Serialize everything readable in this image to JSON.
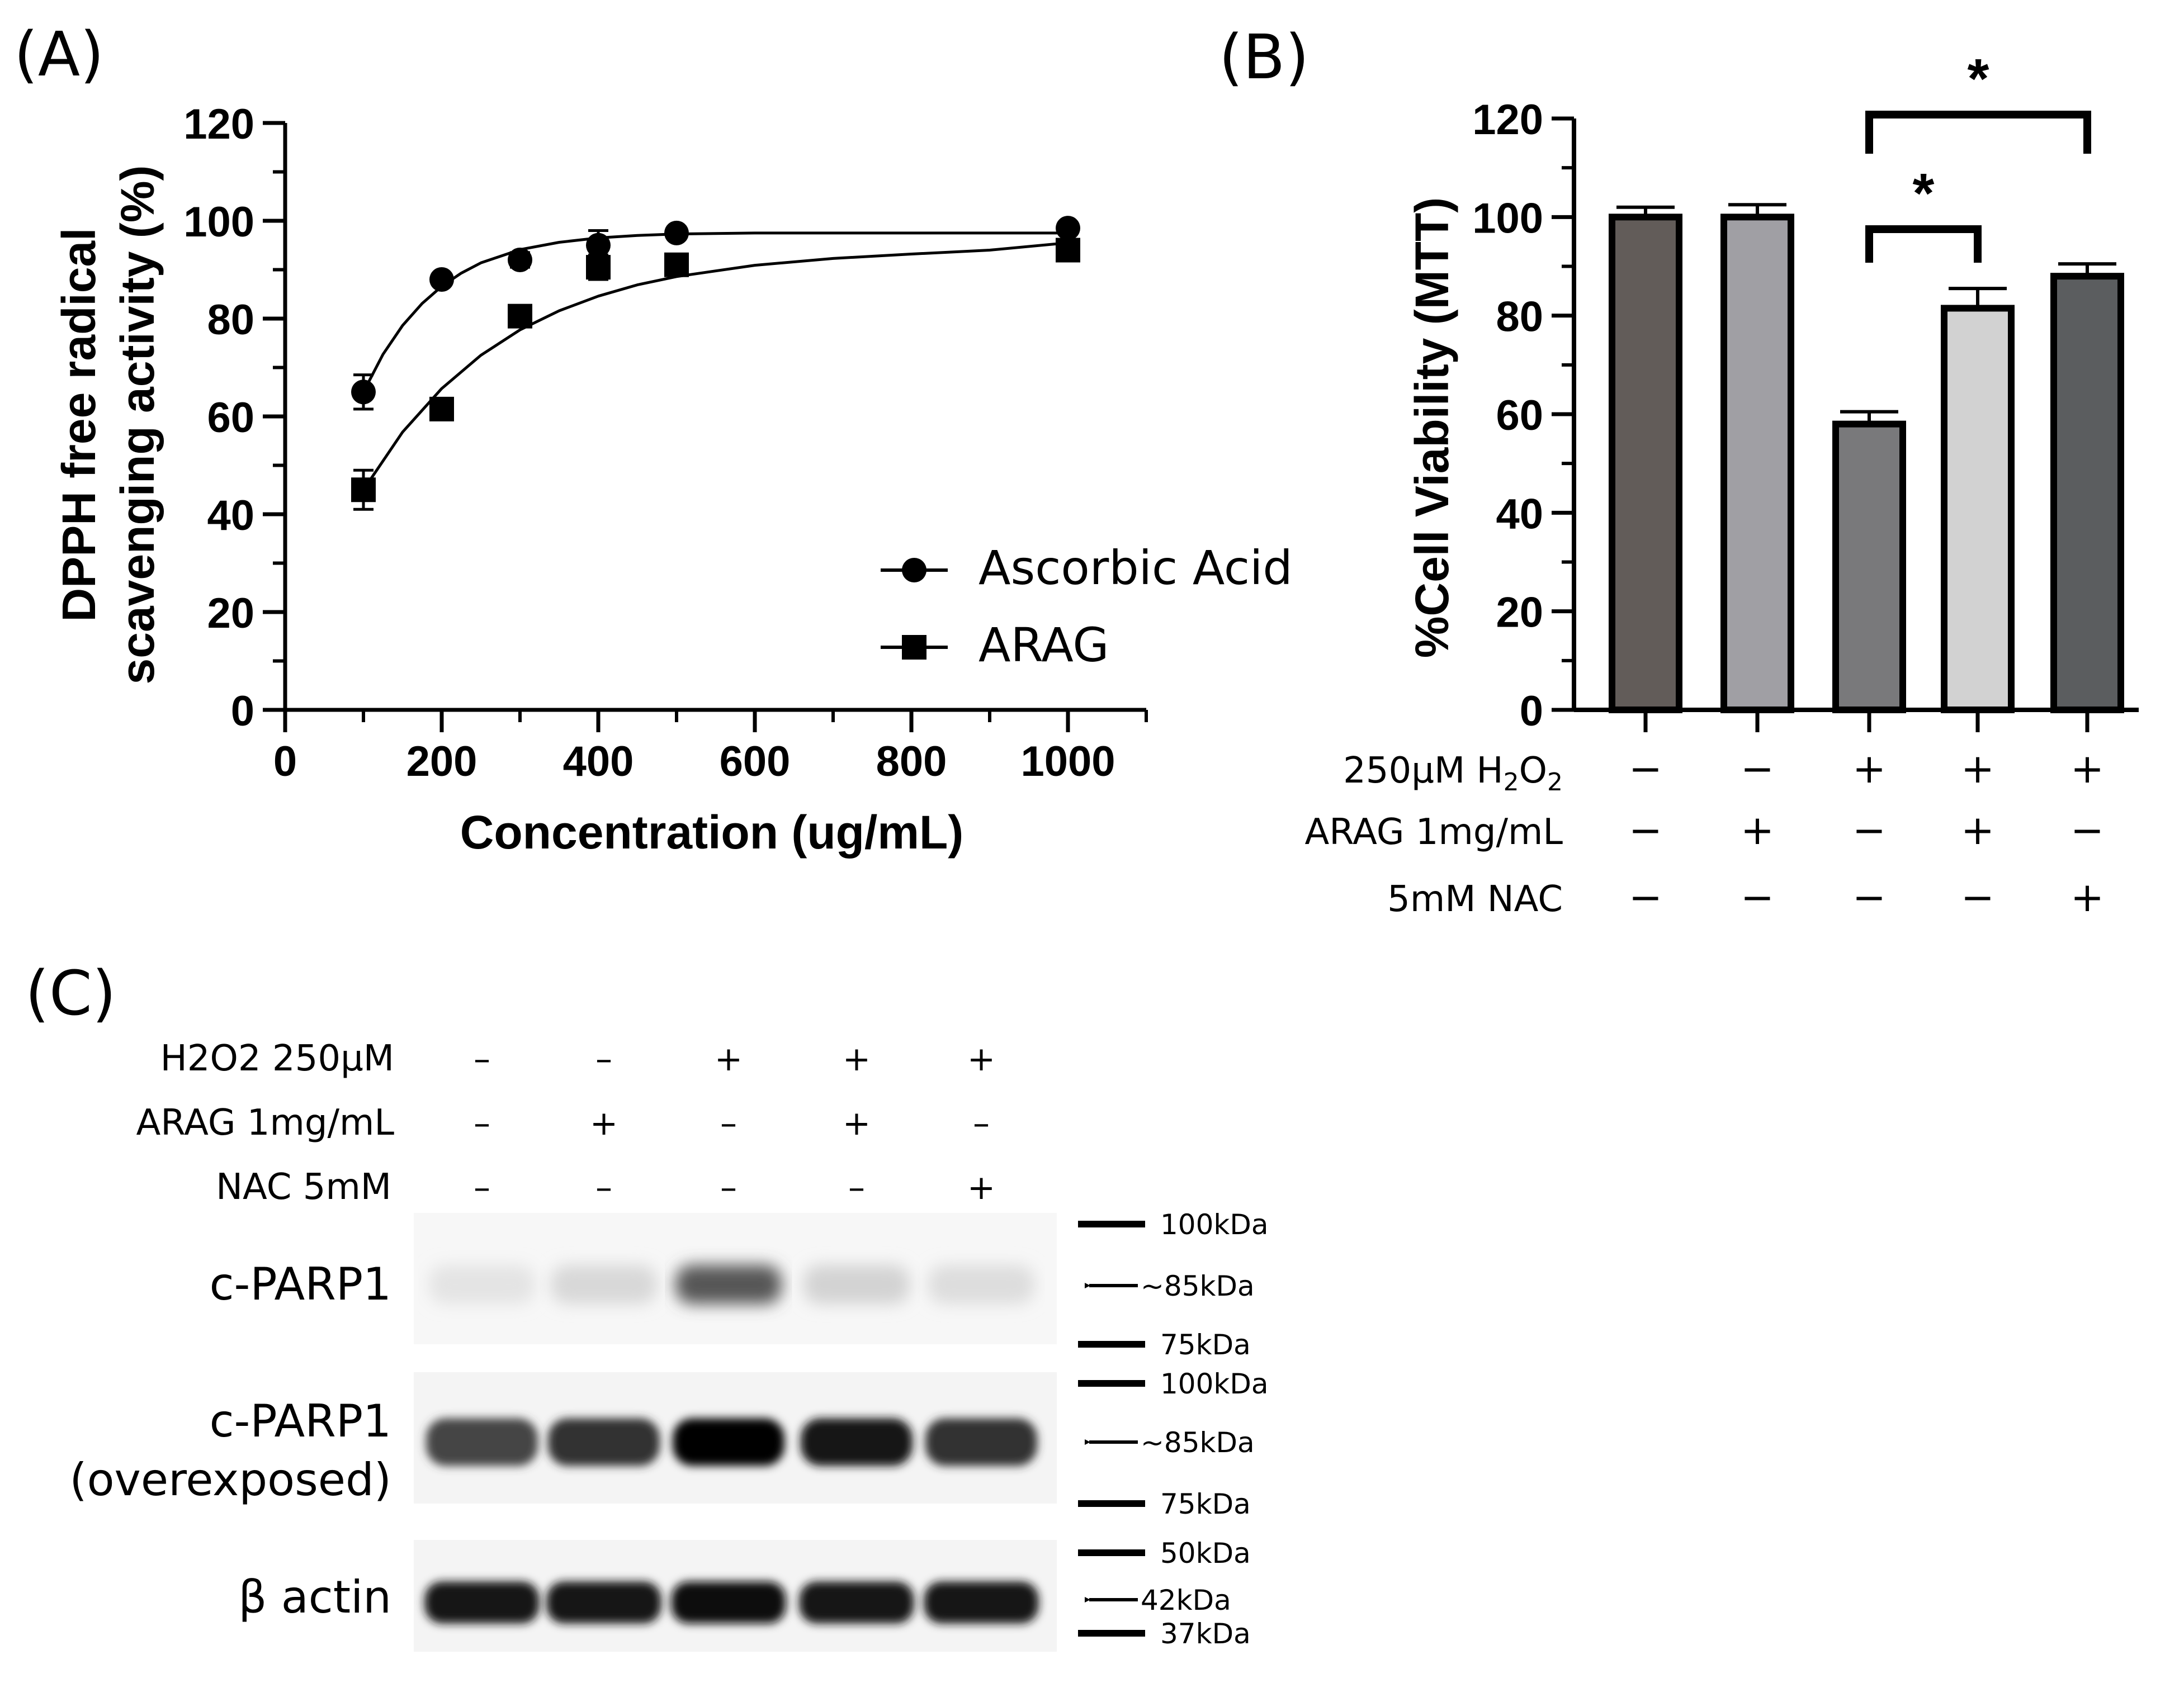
{
  "chart_data": [
    {
      "panel": "(A)",
      "type": "scatter",
      "xlabel": "Concentration (ug/mL)",
      "ylabel_line1": "DPPH free radical",
      "ylabel_line2": "scavenging activity (%)",
      "xlim": [
        0,
        1100
      ],
      "ylim": [
        0,
        120
      ],
      "xticks": [
        0,
        200,
        400,
        600,
        800,
        1000
      ],
      "yticks": [
        0,
        20,
        40,
        60,
        80,
        100,
        120
      ],
      "grid": false,
      "legend_position": "bottom-right",
      "series": [
        {
          "name": "Ascorbic Acid",
          "marker": "circle",
          "x": [
            100,
            200,
            300,
            400,
            500,
            1000
          ],
          "y": [
            65,
            88,
            92,
            95,
            97.5,
            98.5
          ],
          "error": [
            3.5,
            1.2,
            1.5,
            3,
            1.2,
            1.2
          ]
        },
        {
          "name": "ARAG",
          "marker": "square",
          "x": [
            100,
            200,
            300,
            400,
            500,
            1000
          ],
          "y": [
            45,
            61.5,
            80.5,
            90.5,
            91,
            94
          ],
          "error": [
            4,
            2,
            1.5,
            2.5,
            1.2,
            1.5
          ]
        }
      ],
      "fit_curves": [
        {
          "series": "Ascorbic Acid",
          "x": [
            100,
            125,
            150,
            175,
            200,
            225,
            250,
            300,
            350,
            400,
            450,
            500,
            600,
            700,
            800,
            900,
            1000
          ],
          "y": [
            65,
            72.7,
            78.6,
            83.1,
            86.6,
            89.3,
            91.4,
            94.1,
            95.6,
            96.5,
            97,
            97.3,
            97.5,
            97.5,
            97.5,
            97.5,
            97.5
          ]
        },
        {
          "series": "ARAG",
          "x": [
            100,
            150,
            200,
            250,
            300,
            350,
            400,
            450,
            500,
            600,
            700,
            800,
            900,
            1000
          ],
          "y": [
            45,
            56.8,
            65.7,
            72.5,
            77.7,
            81.6,
            84.6,
            86.9,
            88.6,
            90.9,
            92.3,
            93.2,
            94,
            95.5
          ]
        }
      ]
    },
    {
      "panel": "(B)",
      "type": "bar",
      "ylabel": "%Cell Viability (MTT)",
      "ylim": [
        0,
        120
      ],
      "yticks": [
        0,
        20,
        40,
        60,
        80,
        100,
        120
      ],
      "grid": false,
      "bars": [
        {
          "value": 100,
          "error": 2,
          "color": "#625c59"
        },
        {
          "value": 100,
          "error": 2.5,
          "color": "#a09fa4"
        },
        {
          "value": 58,
          "error": 2.5,
          "color": "#79797b"
        },
        {
          "value": 81.5,
          "error": 4,
          "color": "#d2d2d2"
        },
        {
          "value": 88,
          "error": 2.5,
          "color": "#5b5d5f"
        }
      ],
      "treatment_rows": [
        {
          "label": "250µM H",
          "sub1": "2",
          "mid": "O",
          "sub2": "2",
          "signs": [
            "−",
            "−",
            "+",
            "+",
            "+"
          ]
        },
        {
          "label": "ARAG 1mg/mL",
          "signs": [
            "−",
            "+",
            "−",
            "+",
            "−"
          ]
        },
        {
          "label": "5mM NAC",
          "signs": [
            "−",
            "−",
            "−",
            "−",
            "+"
          ]
        }
      ],
      "significance": [
        {
          "from": 3,
          "to": 4,
          "label": "*"
        },
        {
          "from": 3,
          "to": 5,
          "label": "*"
        }
      ]
    }
  ],
  "panel_c": {
    "panel": "(C)",
    "treatment_rows": [
      {
        "label": "H2O2  250µM",
        "signs": [
          "–",
          "–",
          "+",
          "+",
          "+"
        ]
      },
      {
        "label": "ARAG 1mg/mL",
        "signs": [
          "–",
          "+",
          "–",
          "+",
          "–"
        ]
      },
      {
        "label": "NAC 5mM",
        "signs": [
          "–",
          "–",
          "–",
          "–",
          "+"
        ]
      }
    ],
    "blots": [
      {
        "label": "c-PARP1",
        "markers": [
          "100kDa",
          "~85kDa",
          "75kDa"
        ],
        "band_intensity": [
          0.07,
          0.12,
          0.65,
          0.14,
          0.1
        ]
      },
      {
        "label_line1": "c-PARP1",
        "label_line2": "(overexposed)",
        "markers": [
          "100kDa",
          "~85kDa",
          "75kDa"
        ],
        "band_intensity": [
          0.72,
          0.8,
          1.0,
          0.9,
          0.8
        ]
      },
      {
        "label": "β actin",
        "markers": [
          "50kDa",
          "42kDa",
          "37kDa"
        ],
        "band_intensity": [
          0.9,
          0.9,
          0.95,
          0.9,
          0.9
        ]
      }
    ]
  }
}
